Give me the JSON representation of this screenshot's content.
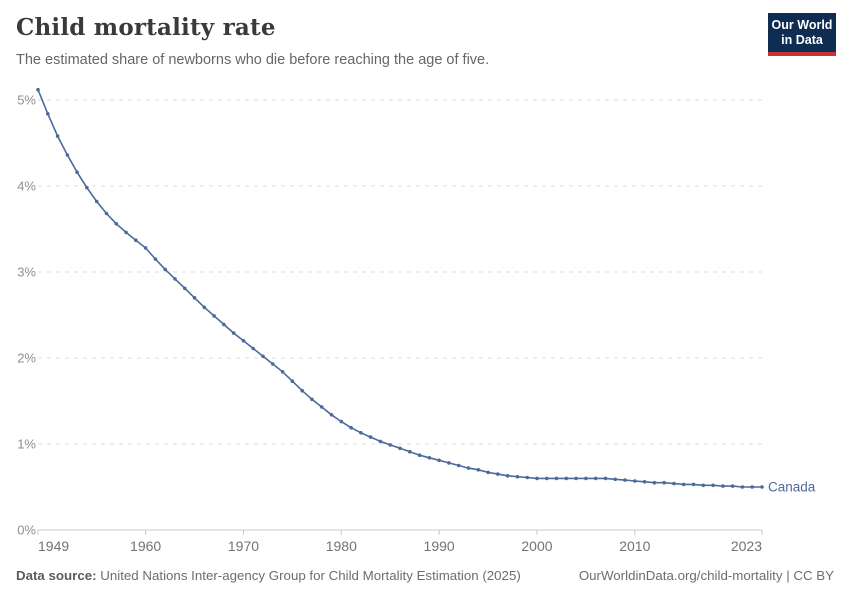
{
  "header": {
    "title": "Child mortality rate",
    "subtitle": "The estimated share of newborns who die before reaching the age of five.",
    "logo_line1": "Our World",
    "logo_line2": "in Data"
  },
  "colors": {
    "line": "#4c6a9c",
    "logo_bg": "#0f2d52",
    "logo_accent": "#cb3333",
    "gridline": "#dddddd",
    "axis": "#c8c8c8",
    "y_label": "#8f8f8f",
    "x_label": "#737373"
  },
  "chart_data": {
    "type": "line",
    "title": "Child mortality rate",
    "subtitle": "The estimated share of newborns who die before reaching the age of five.",
    "xlabel": "",
    "ylabel": "",
    "xlim": [
      1949,
      2023
    ],
    "ylim": [
      0,
      5.25
    ],
    "grid": "horizontal-dashed",
    "legend_position": "end-of-line-label",
    "x_ticks": [
      1949,
      1960,
      1970,
      1980,
      1990,
      2000,
      2010,
      2023
    ],
    "y_ticks": [
      "0%",
      "1%",
      "2%",
      "3%",
      "4%",
      "5%"
    ],
    "x": [
      1949,
      1950,
      1951,
      1952,
      1953,
      1954,
      1955,
      1956,
      1957,
      1958,
      1959,
      1960,
      1961,
      1962,
      1963,
      1964,
      1965,
      1966,
      1967,
      1968,
      1969,
      1970,
      1971,
      1972,
      1973,
      1974,
      1975,
      1976,
      1977,
      1978,
      1979,
      1980,
      1981,
      1982,
      1983,
      1984,
      1985,
      1986,
      1987,
      1988,
      1989,
      1990,
      1991,
      1992,
      1993,
      1994,
      1995,
      1996,
      1997,
      1998,
      1999,
      2000,
      2001,
      2002,
      2003,
      2004,
      2005,
      2006,
      2007,
      2008,
      2009,
      2010,
      2011,
      2012,
      2013,
      2014,
      2015,
      2016,
      2017,
      2018,
      2019,
      2020,
      2021,
      2022,
      2023
    ],
    "series": [
      {
        "name": "Canada",
        "color": "#4c6a9c",
        "unit": "%",
        "values": [
          5.12,
          4.84,
          4.58,
          4.36,
          4.16,
          3.98,
          3.82,
          3.68,
          3.56,
          3.46,
          3.37,
          3.28,
          3.15,
          3.03,
          2.92,
          2.81,
          2.7,
          2.59,
          2.49,
          2.39,
          2.29,
          2.2,
          2.11,
          2.02,
          1.93,
          1.84,
          1.73,
          1.62,
          1.52,
          1.43,
          1.34,
          1.26,
          1.19,
          1.13,
          1.08,
          1.03,
          0.99,
          0.95,
          0.91,
          0.87,
          0.84,
          0.81,
          0.78,
          0.75,
          0.72,
          0.7,
          0.67,
          0.65,
          0.63,
          0.62,
          0.61,
          0.6,
          0.6,
          0.6,
          0.6,
          0.6,
          0.6,
          0.6,
          0.6,
          0.59,
          0.58,
          0.57,
          0.56,
          0.55,
          0.55,
          0.54,
          0.53,
          0.53,
          0.52,
          0.52,
          0.51,
          0.51,
          0.5,
          0.5,
          0.5
        ]
      }
    ]
  },
  "footer": {
    "source_label": "Data source:",
    "source_text": " United Nations Inter-agency Group for Child Mortality Estimation (2025)",
    "credit": "OurWorldinData.org/child-mortality | CC BY"
  }
}
